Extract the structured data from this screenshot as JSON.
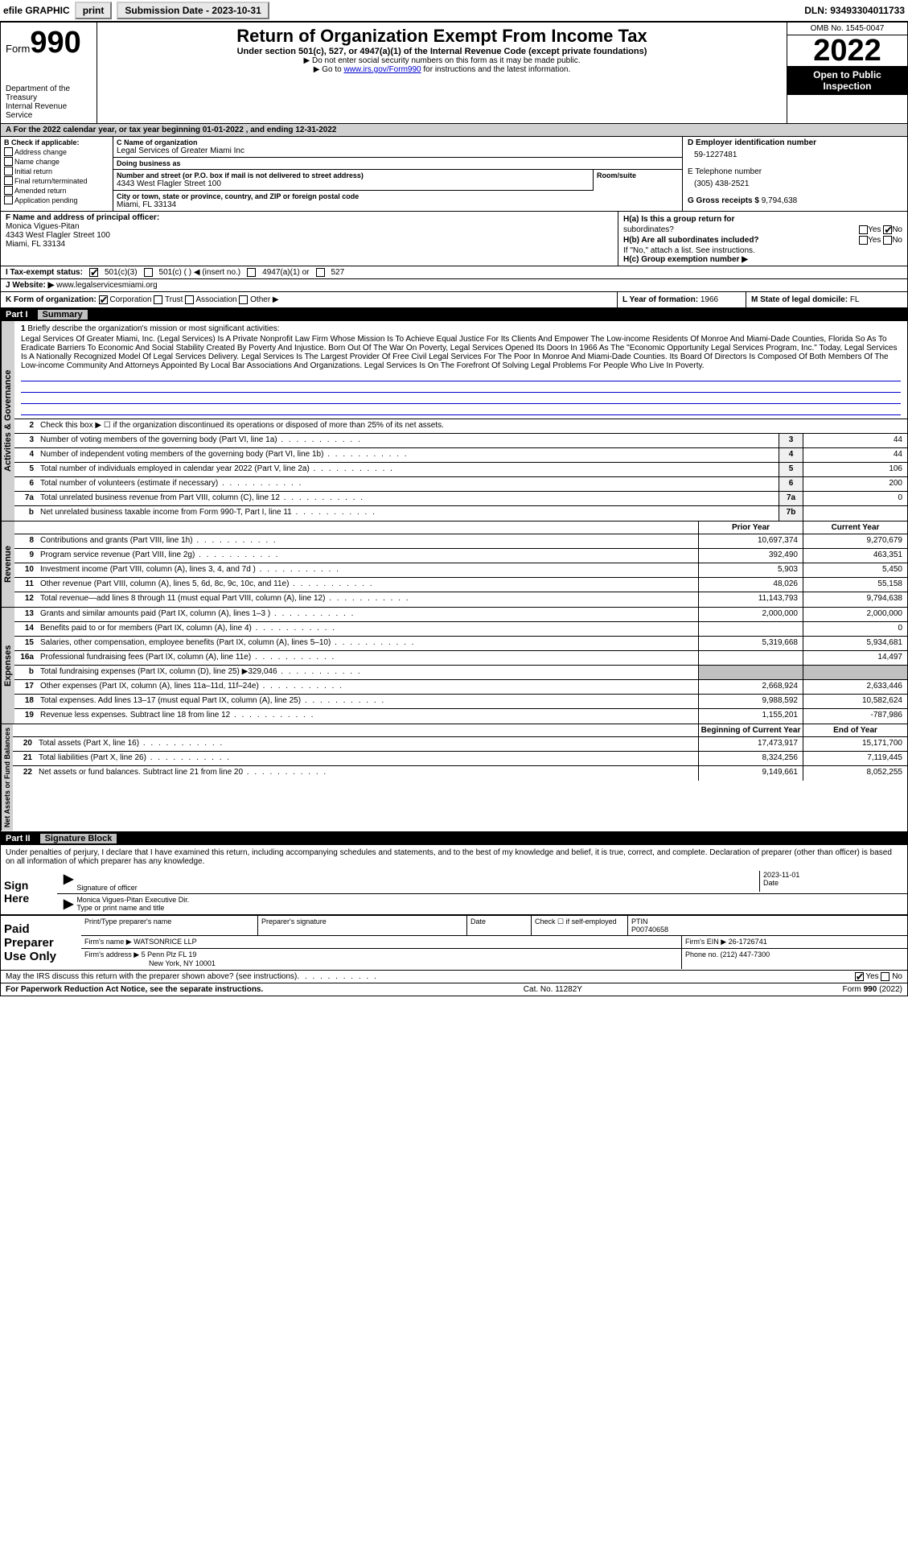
{
  "topbar": {
    "efile": "efile GRAPHIC",
    "print": "print",
    "submission_label": "Submission Date - ",
    "submission_date": "2023-10-31",
    "dln_label": "DLN: ",
    "dln": "93493304011733"
  },
  "header": {
    "form_label": "Form",
    "form_number": "990",
    "title": "Return of Organization Exempt From Income Tax",
    "subtitle": "Under section 501(c), 527, or 4947(a)(1) of the Internal Revenue Code (except private foundations)",
    "note1": "▶ Do not enter social security numbers on this form as it may be made public.",
    "note2_pre": "▶ Go to ",
    "note2_link": "www.irs.gov/Form990",
    "note2_post": " for instructions and the latest information.",
    "dept": "Department of the Treasury",
    "irs": "Internal Revenue Service",
    "omb": "OMB No. 1545-0047",
    "year": "2022",
    "open_inspection": "Open to Public Inspection"
  },
  "line_a": "A For the 2022 calendar year, or tax year beginning 01-01-2022   , and ending 12-31-2022",
  "section_b": {
    "title": "B Check if applicable:",
    "items": [
      "Address change",
      "Name change",
      "Initial return",
      "Final return/terminated",
      "Amended return",
      "Application pending"
    ]
  },
  "section_c": {
    "name_label": "C Name of organization",
    "name": "Legal Services of Greater Miami Inc",
    "dba_label": "Doing business as",
    "dba": "",
    "street_label": "Number and street (or P.O. box if mail is not delivered to street address)",
    "street": "4343 West Flagler Street 100",
    "room_label": "Room/suite",
    "room": "",
    "city_label": "City or town, state or province, country, and ZIP or foreign postal code",
    "city": "Miami, FL  33134"
  },
  "section_d": {
    "label": "D Employer identification number",
    "value": "59-1227481"
  },
  "section_e": {
    "label": "E Telephone number",
    "value": "(305) 438-2521"
  },
  "section_g": {
    "label": "G Gross receipts $ ",
    "value": "9,794,638"
  },
  "section_f": {
    "label": "F  Name and address of principal officer:",
    "name": "Monica Vigues-Pitan",
    "street": "4343 West Flagler Street 100",
    "city": "Miami, FL  33134"
  },
  "section_h": {
    "ha_label": "H(a)  Is this a group return for",
    "ha_sub": "subordinates?",
    "hb_label": "H(b)  Are all subordinates included?",
    "hb_note": "If \"No,\" attach a list. See instructions.",
    "hc_label": "H(c)  Group exemption number ▶",
    "yes": "Yes",
    "no": "No"
  },
  "tax_exempt": {
    "label": "I   Tax-exempt status:",
    "opt1": "501(c)(3)",
    "opt2": "501(c) (  ) ◀ (insert no.)",
    "opt3": "4947(a)(1) or",
    "opt4": "527"
  },
  "website": {
    "label": "J  Website: ▶",
    "value": "www.legalservicesmiami.org"
  },
  "section_k": {
    "label": "K Form of organization:",
    "corp": "Corporation",
    "trust": "Trust",
    "assoc": "Association",
    "other": "Other ▶"
  },
  "section_l": {
    "label": "L Year of formation: ",
    "value": "1966"
  },
  "section_m": {
    "label": "M State of legal domicile: ",
    "value": "FL"
  },
  "part1": {
    "num": "Part I",
    "title": "Summary"
  },
  "mission": {
    "num": "1",
    "prompt": "Briefly describe the organization's mission or most significant activities:",
    "text": "Legal Services Of Greater Miami, Inc. (Legal Services) Is A Private Nonprofit Law Firm Whose Mission Is To Achieve Equal Justice For Its Clients And Empower The Low-income Residents Of Monroe And Miami-Dade Counties, Florida So As To Eradicate Barriers To Economic And Social Stability Created By Poverty And Injustice. Born Out Of The War On Poverty, Legal Services Opened Its Doors In 1966 As The \"Economic Opportunity Legal Services Program, Inc.\" Today, Legal Services Is A Nationally Recognized Model Of Legal Services Delivery. Legal Services Is The Largest Provider Of Free Civil Legal Services For The Poor In Monroe And Miami-Dade Counties. Its Board Of Directors Is Composed Of Both Members Of The Low-income Community And Attorneys Appointed By Local Bar Associations And Organizations. Legal Services Is On The Forefront Of Solving Legal Problems For People Who Live In Poverty."
  },
  "gov_lines": [
    {
      "num": "2",
      "text": "Check this box ▶ ☐  if the organization discontinued its operations or disposed of more than 25% of its net assets.",
      "box": "",
      "val": ""
    },
    {
      "num": "3",
      "text": "Number of voting members of the governing body (Part VI, line 1a)",
      "box": "3",
      "val": "44"
    },
    {
      "num": "4",
      "text": "Number of independent voting members of the governing body (Part VI, line 1b)",
      "box": "4",
      "val": "44"
    },
    {
      "num": "5",
      "text": "Total number of individuals employed in calendar year 2022 (Part V, line 2a)",
      "box": "5",
      "val": "106"
    },
    {
      "num": "6",
      "text": "Total number of volunteers (estimate if necessary)",
      "box": "6",
      "val": "200"
    },
    {
      "num": "7a",
      "text": "Total unrelated business revenue from Part VIII, column (C), line 12",
      "box": "7a",
      "val": "0"
    },
    {
      "num": "b",
      "text": "Net unrelated business taxable income from Form 990-T, Part I, line 11",
      "box": "7b",
      "val": ""
    }
  ],
  "col_headers": {
    "prior": "Prior Year",
    "current": "Current Year"
  },
  "revenue_lines": [
    {
      "num": "8",
      "text": "Contributions and grants (Part VIII, line 1h)",
      "prior": "10,697,374",
      "current": "9,270,679"
    },
    {
      "num": "9",
      "text": "Program service revenue (Part VIII, line 2g)",
      "prior": "392,490",
      "current": "463,351"
    },
    {
      "num": "10",
      "text": "Investment income (Part VIII, column (A), lines 3, 4, and 7d )",
      "prior": "5,903",
      "current": "5,450"
    },
    {
      "num": "11",
      "text": "Other revenue (Part VIII, column (A), lines 5, 6d, 8c, 9c, 10c, and 11e)",
      "prior": "48,026",
      "current": "55,158"
    },
    {
      "num": "12",
      "text": "Total revenue—add lines 8 through 11 (must equal Part VIII, column (A), line 12)",
      "prior": "11,143,793",
      "current": "9,794,638"
    }
  ],
  "expense_lines": [
    {
      "num": "13",
      "text": "Grants and similar amounts paid (Part IX, column (A), lines 1–3 )",
      "prior": "2,000,000",
      "current": "2,000,000"
    },
    {
      "num": "14",
      "text": "Benefits paid to or for members (Part IX, column (A), line 4)",
      "prior": "",
      "current": "0"
    },
    {
      "num": "15",
      "text": "Salaries, other compensation, employee benefits (Part IX, column (A), lines 5–10)",
      "prior": "5,319,668",
      "current": "5,934,681"
    },
    {
      "num": "16a",
      "text": "Professional fundraising fees (Part IX, column (A), line 11e)",
      "prior": "",
      "current": "14,497"
    },
    {
      "num": "b",
      "text": "Total fundraising expenses (Part IX, column (D), line 25) ▶329,046",
      "prior": "shaded",
      "current": "shaded"
    },
    {
      "num": "17",
      "text": "Other expenses (Part IX, column (A), lines 11a–11d, 11f–24e)",
      "prior": "2,668,924",
      "current": "2,633,446"
    },
    {
      "num": "18",
      "text": "Total expenses. Add lines 13–17 (must equal Part IX, column (A), line 25)",
      "prior": "9,988,592",
      "current": "10,582,624"
    },
    {
      "num": "19",
      "text": "Revenue less expenses. Subtract line 18 from line 12",
      "prior": "1,155,201",
      "current": "-787,986"
    }
  ],
  "na_headers": {
    "begin": "Beginning of Current Year",
    "end": "End of Year"
  },
  "na_lines": [
    {
      "num": "20",
      "text": "Total assets (Part X, line 16)",
      "begin": "17,473,917",
      "end": "15,171,700"
    },
    {
      "num": "21",
      "text": "Total liabilities (Part X, line 26)",
      "begin": "8,324,256",
      "end": "7,119,445"
    },
    {
      "num": "22",
      "text": "Net assets or fund balances. Subtract line 21 from line 20",
      "begin": "9,149,661",
      "end": "8,052,255"
    }
  ],
  "part2": {
    "num": "Part II",
    "title": "Signature Block"
  },
  "sig": {
    "declaration": "Under penalties of perjury, I declare that I have examined this return, including accompanying schedules and statements, and to the best of my knowledge and belief, it is true, correct, and complete. Declaration of preparer (other than officer) is based on all information of which preparer has any knowledge.",
    "sign_here": "Sign Here",
    "sig_officer": "Signature of officer",
    "date_label": "Date",
    "date": "2023-11-01",
    "name_title": "Monica Vigues-Pitan  Executive Dir.",
    "type_name": "Type or print name and title"
  },
  "paid": {
    "label": "Paid Preparer Use Only",
    "print_name_label": "Print/Type preparer's name",
    "print_name": "",
    "sig_label": "Preparer's signature",
    "date_label": "Date",
    "check_label": "Check ☐ if self-employed",
    "ptin_label": "PTIN",
    "ptin": "P00740658",
    "firm_name_label": "Firm's name    ▶",
    "firm_name": "WATSONRICE LLP",
    "firm_ein_label": "Firm's EIN ▶",
    "firm_ein": "26-1726741",
    "firm_addr_label": "Firm's address ▶",
    "firm_addr1": "5 Penn Plz FL 19",
    "firm_addr2": "New York, NY  10001",
    "phone_label": "Phone no. ",
    "phone": "(212) 447-7300"
  },
  "discuss": {
    "text": "May the IRS discuss this return with the preparer shown above? (see instructions)",
    "yes": "Yes",
    "no": "No"
  },
  "footer": {
    "pra": "For Paperwork Reduction Act Notice, see the separate instructions.",
    "cat": "Cat. No. 11282Y",
    "form": "Form 990 (2022)"
  },
  "vert_labels": {
    "gov": "Activities & Governance",
    "rev": "Revenue",
    "exp": "Expenses",
    "na": "Net Assets or Fund Balances"
  },
  "colors": {
    "shaded_bg": "#c0c0c0",
    "header_bg": "#000000",
    "link": "#0000cc"
  }
}
